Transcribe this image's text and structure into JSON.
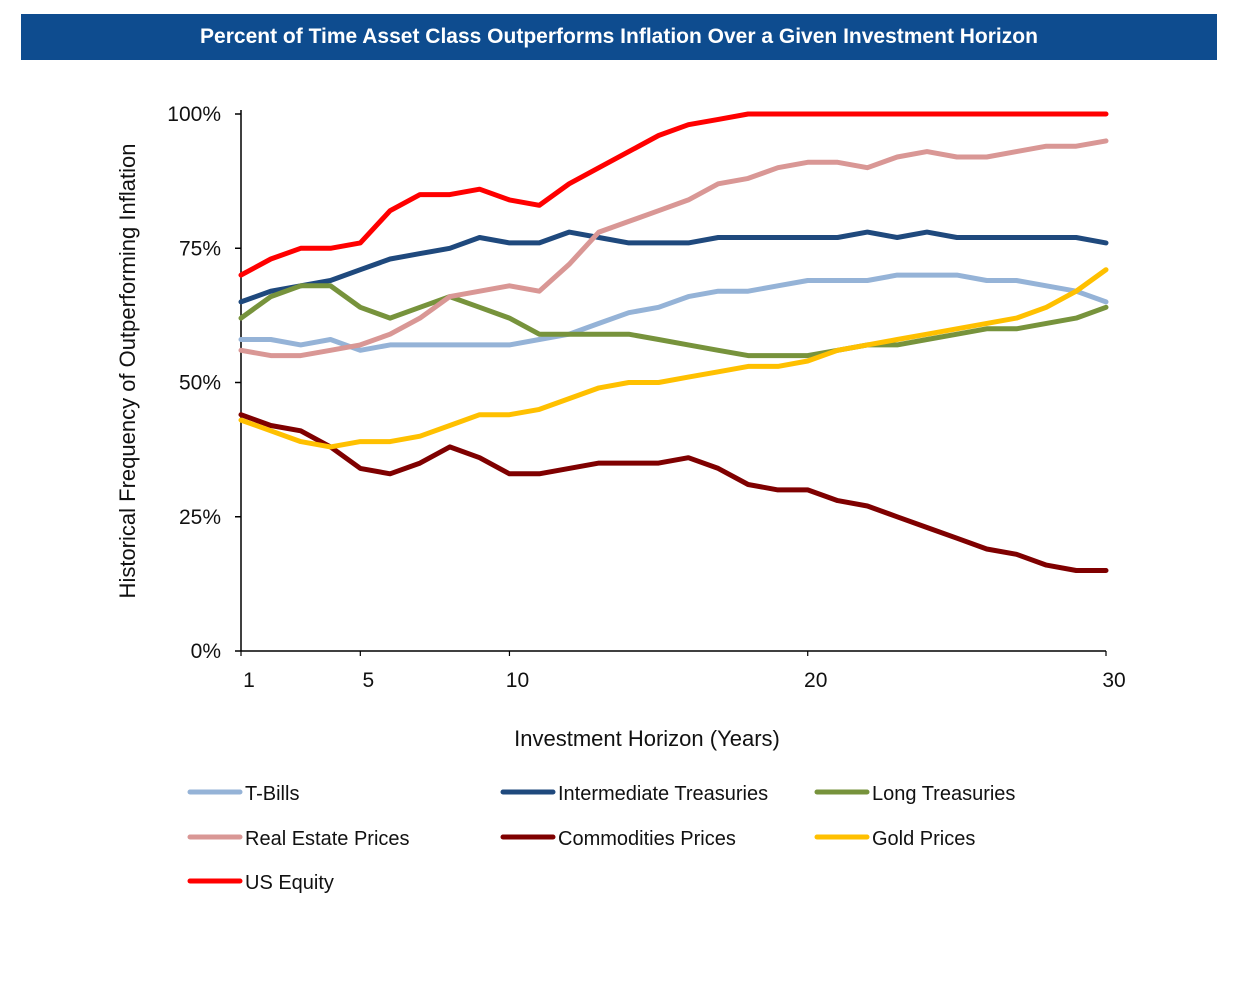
{
  "chart_data": {
    "type": "line",
    "title": "Percent of Time Asset Class Outperforms Inflation Over a Given Investment Horizon",
    "xlabel": "Investment Horizon (Years)",
    "ylabel": "Historical Frequency of Outperforming Inflation",
    "xlim": [
      1,
      30
    ],
    "ylim": [
      0,
      100
    ],
    "xticks": [
      1,
      5,
      10,
      20,
      30
    ],
    "yticks": [
      0,
      25,
      50,
      75,
      100
    ],
    "ytick_labels": [
      "0%",
      "25%",
      "50%",
      "75%",
      "100%"
    ],
    "grid": false,
    "legend_position": "bottom",
    "x": [
      1,
      2,
      3,
      4,
      5,
      6,
      7,
      8,
      9,
      10,
      11,
      12,
      13,
      14,
      15,
      16,
      17,
      18,
      19,
      20,
      21,
      22,
      23,
      24,
      25,
      26,
      27,
      28,
      29,
      30
    ],
    "series": [
      {
        "name": "T-Bills",
        "color": "#95b3d7",
        "values": [
          58,
          58,
          57,
          58,
          56,
          57,
          57,
          57,
          57,
          57,
          58,
          59,
          61,
          63,
          64,
          66,
          67,
          67,
          68,
          69,
          69,
          69,
          70,
          70,
          70,
          69,
          69,
          68,
          67,
          65
        ]
      },
      {
        "name": "Intermediate Treasuries",
        "color": "#1f497d",
        "values": [
          65,
          67,
          68,
          69,
          71,
          73,
          74,
          75,
          77,
          76,
          76,
          78,
          77,
          76,
          76,
          76,
          77,
          77,
          77,
          77,
          77,
          78,
          77,
          78,
          77,
          77,
          77,
          77,
          77,
          76
        ]
      },
      {
        "name": "Long Treasuries",
        "color": "#77933c",
        "values": [
          62,
          66,
          68,
          68,
          64,
          62,
          64,
          66,
          64,
          62,
          59,
          59,
          59,
          59,
          58,
          57,
          56,
          55,
          55,
          55,
          56,
          57,
          57,
          58,
          59,
          60,
          60,
          61,
          62,
          64
        ]
      },
      {
        "name": "Real Estate Prices",
        "color": "#d99795",
        "values": [
          56,
          55,
          55,
          56,
          57,
          59,
          62,
          66,
          67,
          68,
          67,
          72,
          78,
          80,
          82,
          84,
          87,
          88,
          90,
          91,
          91,
          90,
          92,
          93,
          92,
          92,
          93,
          94,
          94,
          95
        ]
      },
      {
        "name": "Commodities Prices",
        "color": "#7f0000",
        "values": [
          44,
          42,
          41,
          38,
          34,
          33,
          35,
          38,
          36,
          33,
          33,
          34,
          35,
          35,
          35,
          36,
          34,
          31,
          30,
          30,
          28,
          27,
          25,
          23,
          21,
          19,
          18,
          16,
          15,
          15
        ]
      },
      {
        "name": "Gold Prices",
        "color": "#ffc000",
        "values": [
          43,
          41,
          39,
          38,
          39,
          39,
          40,
          42,
          44,
          44,
          45,
          47,
          49,
          50,
          50,
          51,
          52,
          53,
          53,
          54,
          56,
          57,
          58,
          59,
          60,
          61,
          62,
          64,
          67,
          71
        ]
      },
      {
        "name": "US Equity",
        "color": "#ff0000",
        "values": [
          70,
          73,
          75,
          75,
          76,
          82,
          85,
          85,
          86,
          84,
          83,
          87,
          90,
          93,
          96,
          98,
          99,
          100,
          100,
          100,
          100,
          100,
          100,
          100,
          100,
          100,
          100,
          100,
          100,
          100
        ]
      }
    ]
  }
}
